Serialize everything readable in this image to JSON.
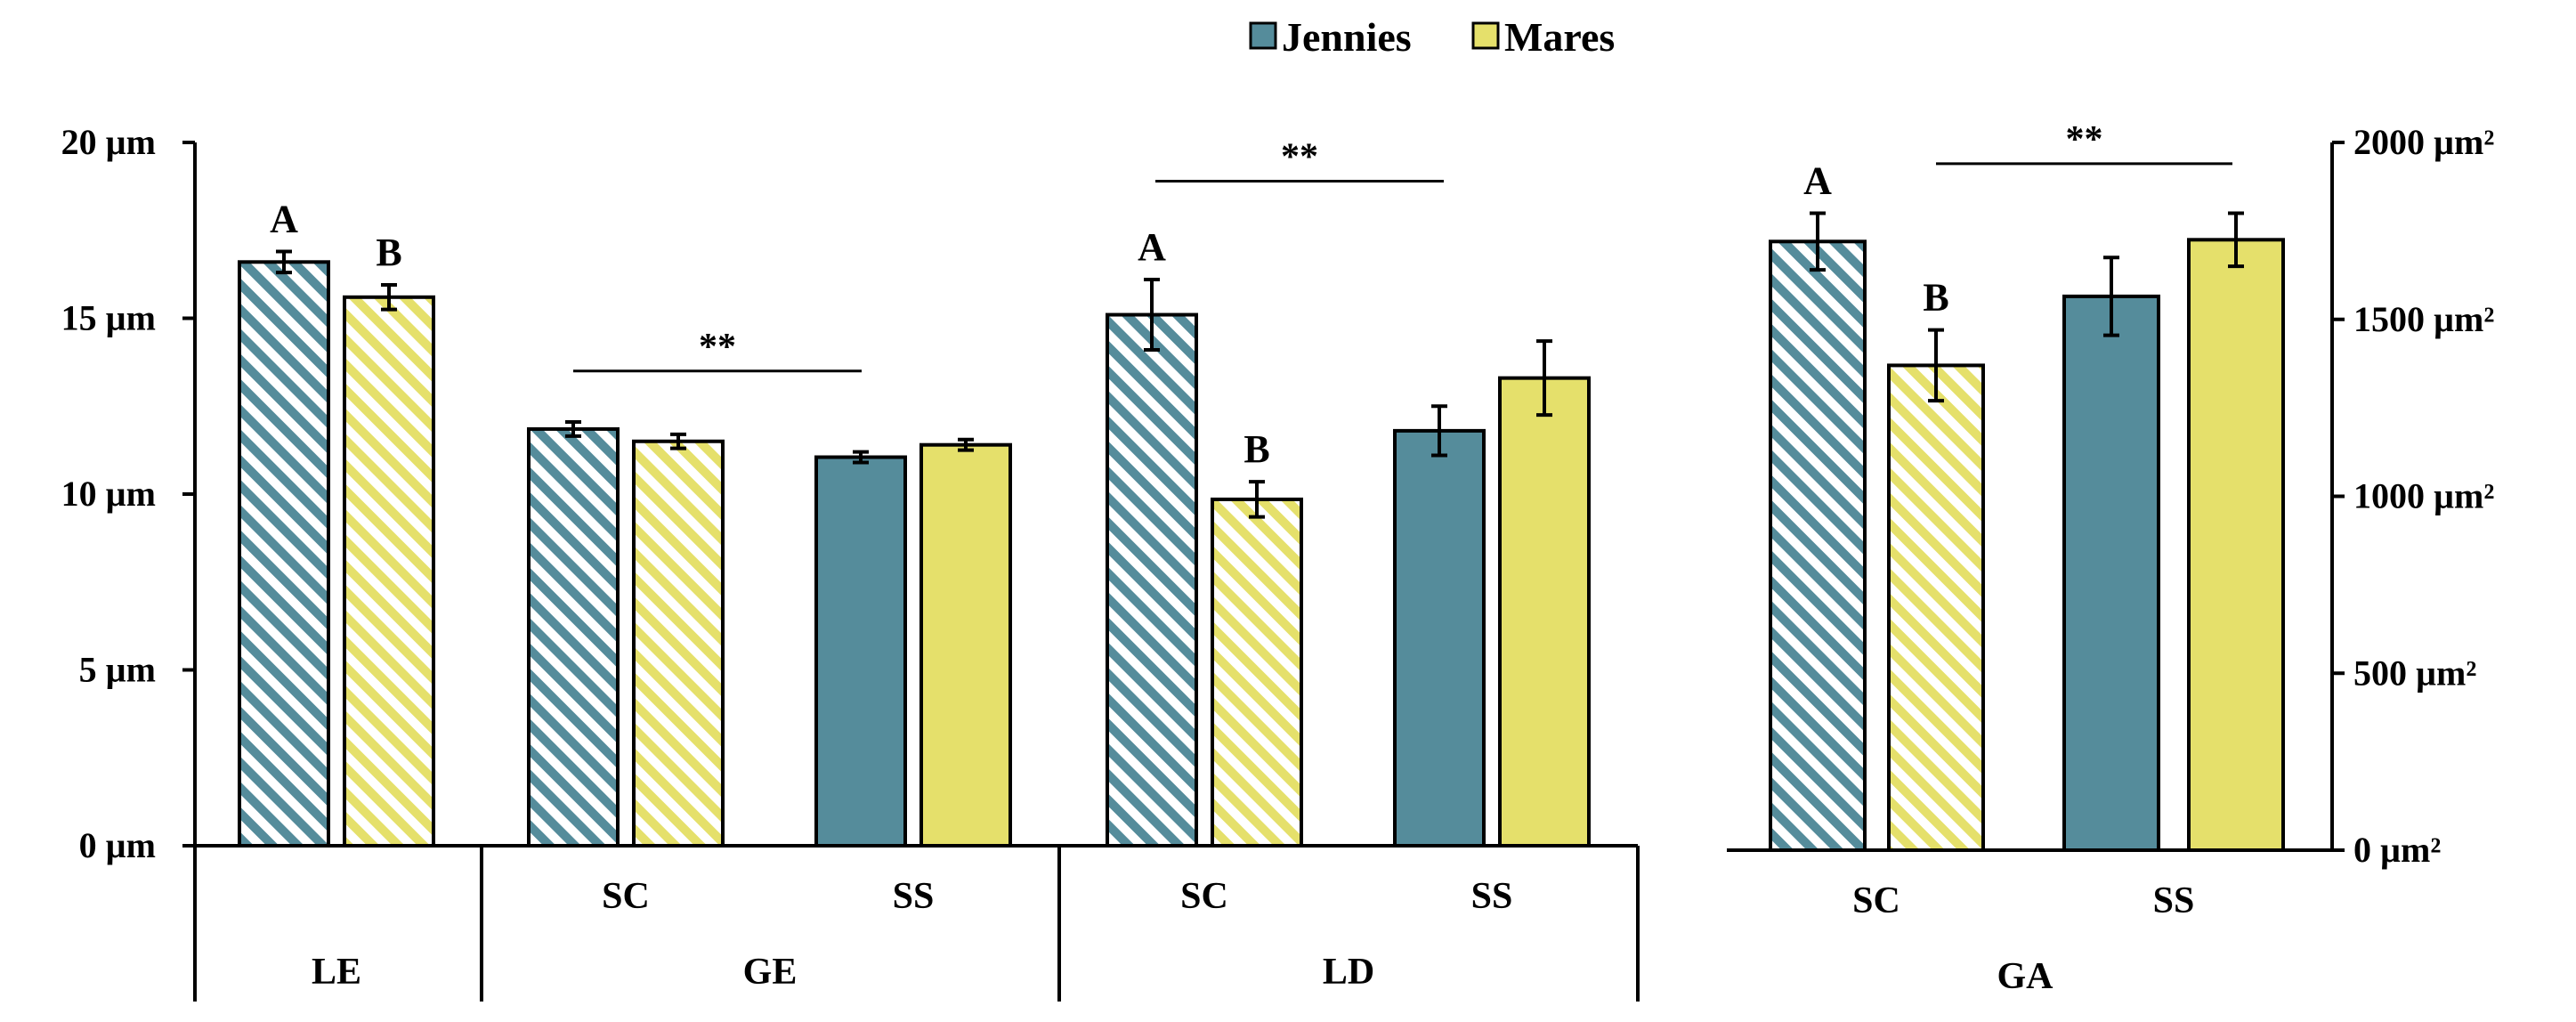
{
  "legend": {
    "series1": "Jennies",
    "series2": "Mares",
    "series1_color": "#558c9b",
    "series2_color": "#e5e06b"
  },
  "chart_data": [
    {
      "type": "bar",
      "y_unit": "µm",
      "ylim": [
        0,
        20
      ],
      "yticks": [
        0,
        5,
        10,
        15,
        20
      ],
      "ytick_labels": [
        "0 µm",
        "5 µm",
        "10 µm",
        "15 µm",
        "20 µm"
      ],
      "bars": [
        {
          "group": "LE",
          "sub": "",
          "series": "Jennies",
          "value": 16.6,
          "error": 0.3,
          "hatched": true,
          "letter": "A"
        },
        {
          "group": "LE",
          "sub": "",
          "series": "Mares",
          "value": 15.6,
          "error": 0.35,
          "hatched": true,
          "letter": "B"
        },
        {
          "group": "GE",
          "sub": "SC",
          "series": "Jennies",
          "value": 11.85,
          "error": 0.2,
          "hatched": true,
          "letter": ""
        },
        {
          "group": "GE",
          "sub": "SC",
          "series": "Mares",
          "value": 11.5,
          "error": 0.2,
          "hatched": true,
          "letter": ""
        },
        {
          "group": "GE",
          "sub": "SS",
          "series": "Jennies",
          "value": 11.05,
          "error": 0.15,
          "hatched": false,
          "letter": ""
        },
        {
          "group": "GE",
          "sub": "SS",
          "series": "Mares",
          "value": 11.4,
          "error": 0.15,
          "hatched": false,
          "letter": ""
        },
        {
          "group": "LD",
          "sub": "SC",
          "series": "Jennies",
          "value": 15.1,
          "error": 1.0,
          "hatched": true,
          "letter": "A"
        },
        {
          "group": "LD",
          "sub": "SC",
          "series": "Mares",
          "value": 9.85,
          "error": 0.5,
          "hatched": true,
          "letter": "B"
        },
        {
          "group": "LD",
          "sub": "SS",
          "series": "Jennies",
          "value": 11.8,
          "error": 0.7,
          "hatched": false,
          "letter": ""
        },
        {
          "group": "LD",
          "sub": "SS",
          "series": "Mares",
          "value": 13.3,
          "error": 1.05,
          "hatched": false,
          "letter": ""
        }
      ],
      "groups": [
        "LE",
        "GE",
        "LD"
      ],
      "subgroups": {
        "GE": [
          "SC",
          "SS"
        ],
        "LD": [
          "SC",
          "SS"
        ]
      },
      "significance": [
        {
          "group": "GE",
          "label": "**",
          "level": 13.5
        },
        {
          "group": "LD",
          "label": "**",
          "level": 18.9
        }
      ]
    },
    {
      "type": "bar",
      "y_unit": "µm²",
      "ylim": [
        0,
        2000
      ],
      "yticks": [
        0,
        500,
        1000,
        1500,
        2000
      ],
      "ytick_labels": [
        "0 µm²",
        "500 µm²",
        "1000 µm²",
        "1500 µm²",
        "2000 µm²"
      ],
      "bars": [
        {
          "group": "GA",
          "sub": "SC",
          "series": "Jennies",
          "value": 1720,
          "error": 80,
          "hatched": true,
          "letter": "A"
        },
        {
          "group": "GA",
          "sub": "SC",
          "series": "Mares",
          "value": 1370,
          "error": 100,
          "hatched": true,
          "letter": "B"
        },
        {
          "group": "GA",
          "sub": "SS",
          "series": "Jennies",
          "value": 1565,
          "error": 110,
          "hatched": false,
          "letter": ""
        },
        {
          "group": "GA",
          "sub": "SS",
          "series": "Mares",
          "value": 1725,
          "error": 75,
          "hatched": false,
          "letter": ""
        }
      ],
      "groups": [
        "GA"
      ],
      "subgroups": {
        "GA": [
          "SC",
          "SS"
        ]
      },
      "significance": [
        {
          "group": "GA",
          "label": "**",
          "level": 1940
        }
      ]
    }
  ]
}
